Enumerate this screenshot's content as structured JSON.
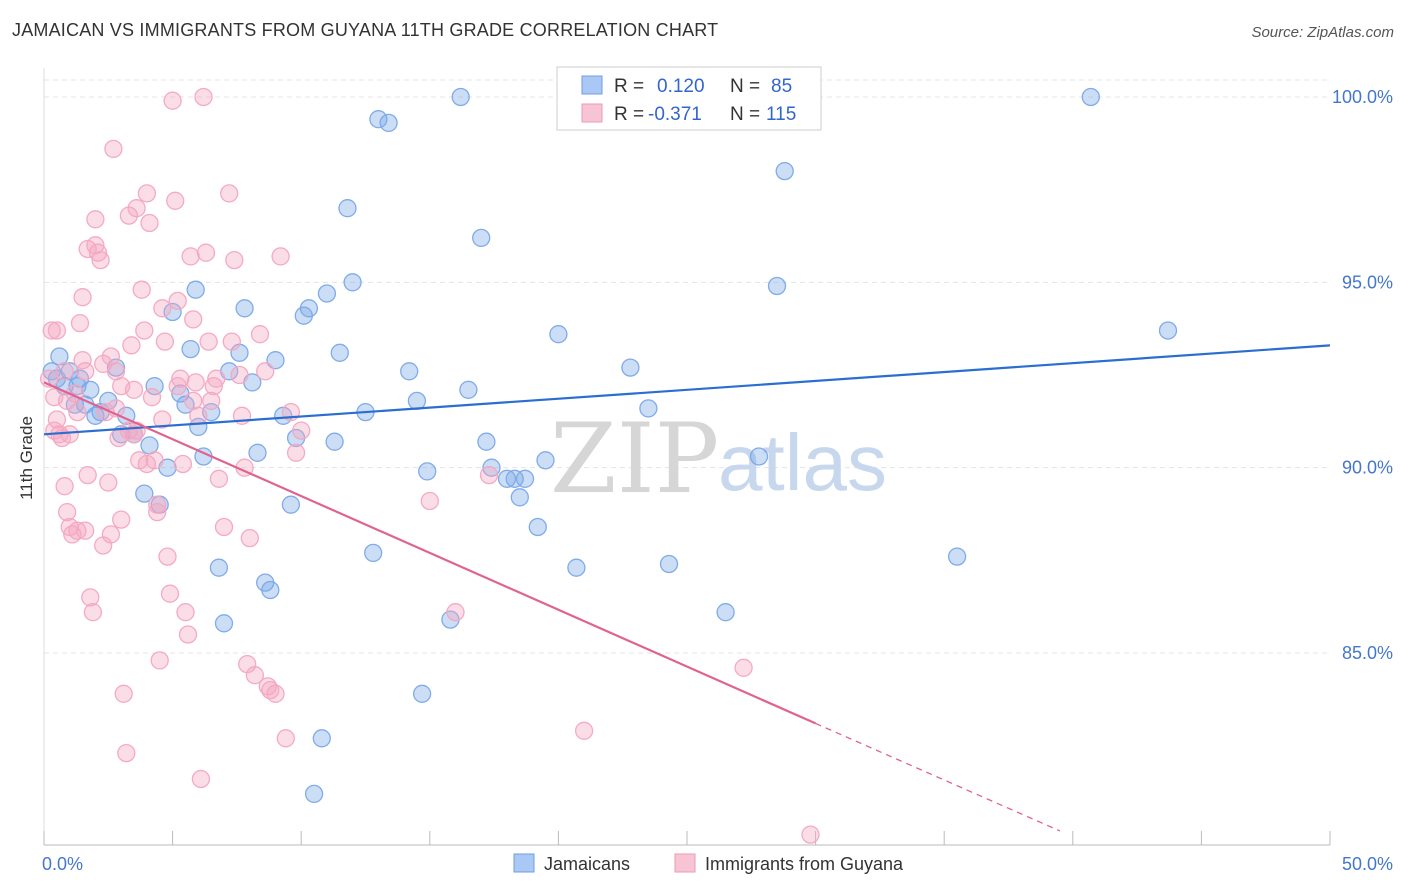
{
  "title": "JAMAICAN VS IMMIGRANTS FROM GUYANA 11TH GRADE CORRELATION CHART",
  "source": "Source: ZipAtlas.com",
  "watermark": {
    "zip": "ZIP",
    "atlas": "atlas"
  },
  "legend_box": {
    "rows": [
      {
        "r_label": "R =",
        "r_value": "0.120",
        "n_label": "N =",
        "n_value": "85",
        "color": "#a9c8f5"
      },
      {
        "r_label": "R =",
        "r_value": "-0.371",
        "n_label": "N =",
        "n_value": "115",
        "color": "#f7b8cc"
      }
    ]
  },
  "chart_data": {
    "type": "scatter",
    "title": "JAMAICAN VS IMMIGRANTS FROM GUYANA 11TH GRADE CORRELATION CHART",
    "xlabel": "",
    "ylabel": "11th Grade",
    "xlim": [
      0,
      50
    ],
    "ylim": [
      80.0,
      100.5
    ],
    "x_tick_labels": [
      "0.0%",
      "50.0%"
    ],
    "y_ticks": [
      85,
      90,
      95,
      100
    ],
    "y_tick_labels": [
      "85.0%",
      "90.0%",
      "95.0%",
      "100.0%"
    ],
    "grid": true,
    "legend_placement": "bottom-center",
    "series": [
      {
        "name": "Jamaicans",
        "color": "#7aa8e8",
        "line_color": "#2a6fd0",
        "r": 0.12,
        "n": 85,
        "trend": {
          "x": [
            0,
            50
          ],
          "y": [
            90.9,
            93.3
          ]
        },
        "points": [
          [
            0.3,
            92.6
          ],
          [
            0.5,
            92.4
          ],
          [
            0.6,
            93.0
          ],
          [
            0.8,
            92.2
          ],
          [
            1.0,
            92.6
          ],
          [
            1.2,
            91.7
          ],
          [
            1.4,
            92.4
          ],
          [
            1.6,
            91.7
          ],
          [
            1.8,
            92.1
          ],
          [
            2.0,
            91.4
          ],
          [
            2.5,
            91.8
          ],
          [
            2.8,
            92.7
          ],
          [
            3.0,
            90.9
          ],
          [
            3.2,
            91.4
          ],
          [
            3.5,
            90.9
          ],
          [
            3.9,
            89.3
          ],
          [
            4.1,
            90.6
          ],
          [
            4.3,
            92.2
          ],
          [
            4.5,
            89.0
          ],
          [
            4.8,
            90.0
          ],
          [
            5.0,
            94.2
          ],
          [
            5.3,
            92.0
          ],
          [
            5.5,
            91.7
          ],
          [
            5.7,
            93.2
          ],
          [
            5.9,
            94.8
          ],
          [
            6.2,
            90.3
          ],
          [
            6.5,
            91.5
          ],
          [
            6.8,
            87.3
          ],
          [
            7.0,
            85.8
          ],
          [
            7.2,
            92.6
          ],
          [
            7.6,
            93.1
          ],
          [
            7.8,
            94.3
          ],
          [
            8.1,
            92.3
          ],
          [
            8.3,
            90.4
          ],
          [
            8.6,
            86.9
          ],
          [
            8.8,
            86.7
          ],
          [
            9.0,
            92.9
          ],
          [
            9.3,
            91.4
          ],
          [
            9.6,
            89.0
          ],
          [
            9.8,
            90.8
          ],
          [
            10.1,
            94.1
          ],
          [
            10.3,
            94.3
          ],
          [
            10.5,
            81.2
          ],
          [
            10.8,
            82.7
          ],
          [
            11.0,
            94.7
          ],
          [
            11.3,
            90.7
          ],
          [
            11.5,
            93.1
          ],
          [
            11.8,
            97.0
          ],
          [
            12.0,
            95.0
          ],
          [
            12.5,
            91.5
          ],
          [
            12.8,
            87.7
          ],
          [
            13.0,
            99.4
          ],
          [
            13.4,
            99.3
          ],
          [
            14.2,
            92.6
          ],
          [
            14.5,
            91.8
          ],
          [
            14.7,
            83.9
          ],
          [
            14.9,
            89.9
          ],
          [
            15.8,
            85.9
          ],
          [
            16.2,
            100.0
          ],
          [
            16.5,
            92.1
          ],
          [
            17.0,
            96.2
          ],
          [
            17.2,
            90.7
          ],
          [
            17.4,
            90.0
          ],
          [
            18.0,
            89.7
          ],
          [
            18.3,
            89.7
          ],
          [
            18.5,
            89.2
          ],
          [
            18.7,
            89.7
          ],
          [
            19.2,
            88.4
          ],
          [
            19.5,
            90.2
          ],
          [
            20.0,
            93.6
          ],
          [
            20.7,
            87.3
          ],
          [
            22.8,
            92.7
          ],
          [
            23.5,
            91.6
          ],
          [
            24.3,
            87.4
          ],
          [
            26.5,
            86.1
          ],
          [
            27.3,
            100.0
          ],
          [
            27.8,
            90.3
          ],
          [
            28.5,
            94.9
          ],
          [
            28.8,
            98.0
          ],
          [
            35.5,
            87.6
          ],
          [
            40.7,
            100.0
          ],
          [
            43.7,
            93.7
          ],
          [
            1.3,
            92.2
          ],
          [
            2.2,
            91.5
          ],
          [
            6.0,
            91.1
          ]
        ]
      },
      {
        "name": "Immigrants from Guyana",
        "color": "#f4a6c0",
        "line_color": "#e0638f",
        "r": -0.371,
        "n": 115,
        "trend": {
          "x": [
            0,
            30
          ],
          "y": [
            92.3,
            83.1
          ]
        },
        "trend_extension": {
          "x": [
            30,
            39.5
          ],
          "y": [
            83.1,
            80.2
          ]
        },
        "points": [
          [
            0.2,
            92.4
          ],
          [
            0.3,
            93.7
          ],
          [
            0.4,
            91.9
          ],
          [
            0.5,
            91.3
          ],
          [
            0.6,
            90.9
          ],
          [
            0.7,
            90.8
          ],
          [
            0.8,
            89.5
          ],
          [
            0.9,
            88.8
          ],
          [
            1.0,
            88.4
          ],
          [
            1.1,
            88.2
          ],
          [
            1.2,
            92.0
          ],
          [
            1.3,
            91.5
          ],
          [
            1.4,
            93.9
          ],
          [
            1.5,
            94.6
          ],
          [
            1.6,
            92.6
          ],
          [
            1.7,
            89.8
          ],
          [
            1.8,
            86.5
          ],
          [
            1.9,
            86.1
          ],
          [
            2.0,
            96.7
          ],
          [
            2.1,
            95.8
          ],
          [
            2.2,
            95.6
          ],
          [
            2.3,
            92.8
          ],
          [
            2.4,
            91.5
          ],
          [
            2.5,
            89.6
          ],
          [
            2.6,
            88.2
          ],
          [
            2.7,
            98.6
          ],
          [
            2.8,
            91.6
          ],
          [
            2.9,
            90.8
          ],
          [
            3.0,
            88.6
          ],
          [
            3.1,
            83.9
          ],
          [
            3.2,
            82.3
          ],
          [
            3.3,
            96.8
          ],
          [
            3.4,
            93.3
          ],
          [
            3.5,
            92.1
          ],
          [
            3.6,
            91.0
          ],
          [
            3.7,
            90.2
          ],
          [
            3.8,
            94.8
          ],
          [
            3.9,
            93.7
          ],
          [
            4.0,
            97.4
          ],
          [
            4.1,
            96.6
          ],
          [
            4.2,
            91.9
          ],
          [
            4.3,
            90.2
          ],
          [
            4.4,
            88.8
          ],
          [
            4.5,
            84.8
          ],
          [
            4.6,
            94.3
          ],
          [
            4.7,
            93.4
          ],
          [
            4.8,
            87.6
          ],
          [
            4.9,
            86.6
          ],
          [
            5.0,
            99.9
          ],
          [
            5.1,
            97.2
          ],
          [
            5.2,
            94.5
          ],
          [
            5.3,
            92.4
          ],
          [
            5.4,
            90.1
          ],
          [
            5.5,
            86.1
          ],
          [
            5.6,
            85.5
          ],
          [
            5.7,
            95.7
          ],
          [
            5.8,
            94.0
          ],
          [
            5.9,
            92.3
          ],
          [
            6.0,
            91.4
          ],
          [
            6.1,
            81.6
          ],
          [
            6.2,
            100.0
          ],
          [
            6.3,
            95.8
          ],
          [
            6.4,
            93.4
          ],
          [
            6.6,
            92.2
          ],
          [
            6.8,
            89.7
          ],
          [
            7.0,
            88.4
          ],
          [
            7.2,
            97.4
          ],
          [
            7.4,
            95.6
          ],
          [
            7.6,
            92.5
          ],
          [
            7.8,
            90.0
          ],
          [
            8.0,
            88.1
          ],
          [
            8.2,
            84.4
          ],
          [
            8.4,
            93.6
          ],
          [
            8.6,
            92.6
          ],
          [
            8.8,
            84.0
          ],
          [
            9.0,
            83.9
          ],
          [
            9.2,
            95.7
          ],
          [
            9.4,
            82.7
          ],
          [
            9.6,
            91.5
          ],
          [
            9.8,
            90.4
          ],
          [
            10.0,
            91.0
          ],
          [
            0.5,
            93.7
          ],
          [
            0.8,
            92.6
          ],
          [
            1.0,
            90.9
          ],
          [
            1.3,
            88.3
          ],
          [
            1.6,
            88.3
          ],
          [
            2.3,
            87.9
          ],
          [
            2.6,
            93.0
          ],
          [
            3.0,
            92.2
          ],
          [
            3.3,
            91.0
          ],
          [
            4.0,
            90.1
          ],
          [
            4.4,
            89.0
          ],
          [
            5.2,
            92.2
          ],
          [
            6.5,
            91.8
          ],
          [
            7.3,
            93.4
          ],
          [
            7.9,
            84.7
          ],
          [
            8.7,
            84.1
          ],
          [
            2.0,
            96.0
          ],
          [
            1.7,
            95.9
          ],
          [
            3.6,
            97.0
          ],
          [
            15.0,
            89.1
          ],
          [
            16.0,
            86.1
          ],
          [
            17.3,
            89.8
          ],
          [
            21.0,
            82.9
          ],
          [
            27.2,
            84.6
          ],
          [
            29.8,
            80.1
          ],
          [
            0.4,
            91.0
          ],
          [
            0.9,
            91.8
          ],
          [
            1.5,
            92.9
          ],
          [
            2.8,
            92.6
          ],
          [
            3.5,
            90.9
          ],
          [
            4.6,
            91.3
          ],
          [
            5.8,
            91.8
          ],
          [
            6.7,
            92.4
          ],
          [
            7.7,
            91.4
          ]
        ]
      }
    ]
  }
}
